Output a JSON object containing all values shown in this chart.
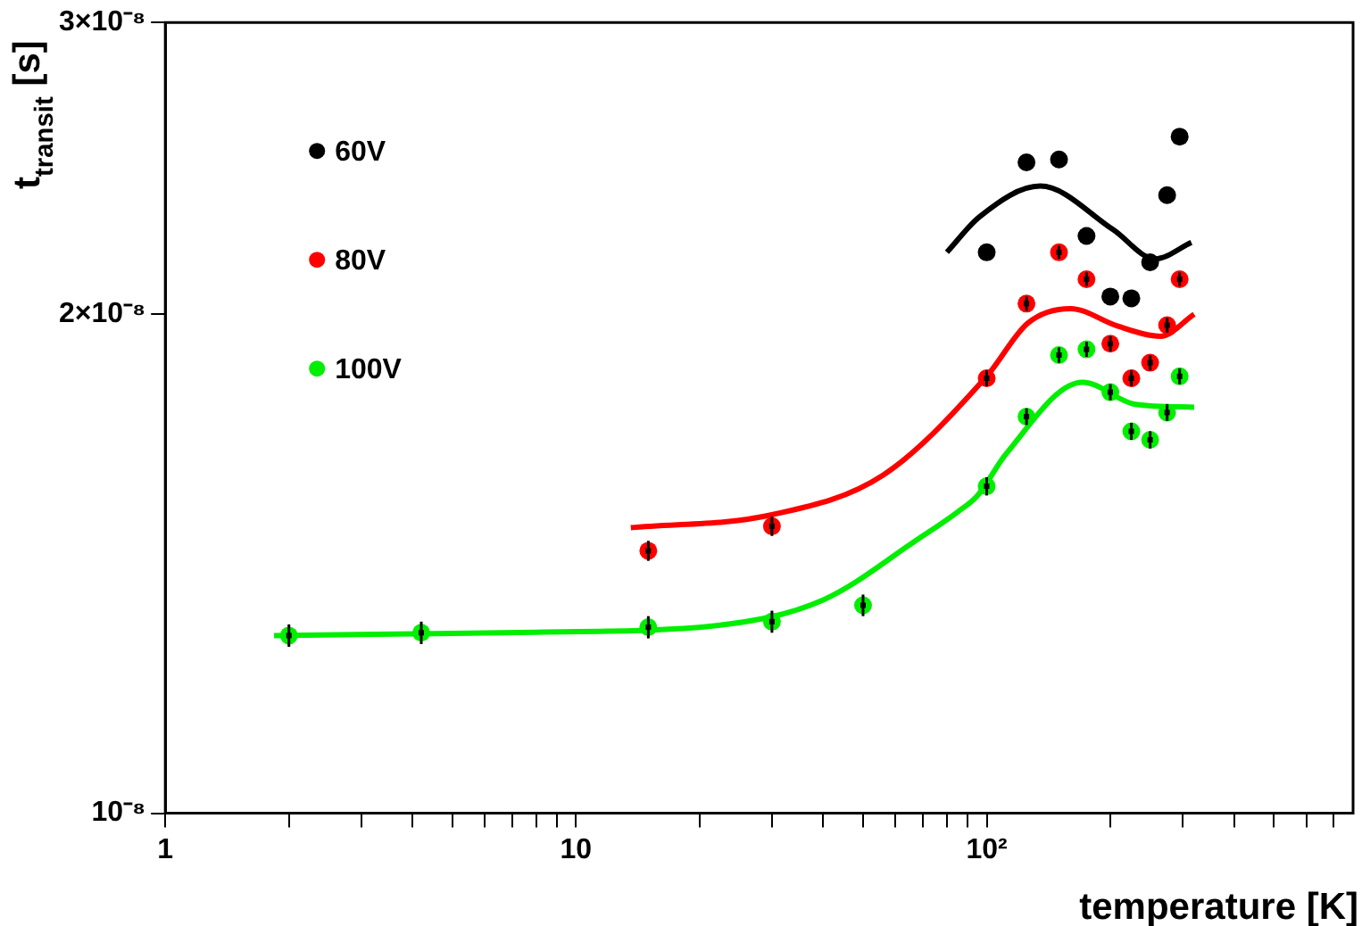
{
  "chart_data": {
    "type": "scatter",
    "xlabel": "temperature [K]",
    "ylabel": "t$_{transit}$ [s]",
    "log": "xy",
    "xlim": [
      1,
      780
    ],
    "ylim": [
      1e-08,
      3e-08
    ],
    "xticks": [
      1,
      {
        "value": 2,
        "label": null
      },
      {
        "value": 3,
        "label": null
      },
      {
        "value": 4,
        "label": null
      },
      {
        "value": 5,
        "label": null
      },
      {
        "value": 6,
        "label": null
      },
      {
        "value": 7,
        "label": null
      },
      {
        "value": 8,
        "label": null
      },
      {
        "value": 9,
        "label": null
      },
      10,
      {
        "value": 20,
        "label": null
      },
      {
        "value": 30,
        "label": null
      },
      {
        "value": 40,
        "label": null
      },
      {
        "value": 50,
        "label": null
      },
      {
        "value": 60,
        "label": null
      },
      {
        "value": 70,
        "label": null
      },
      {
        "value": 80,
        "label": null
      },
      {
        "value": 90,
        "label": null
      },
      {
        "value": 100,
        "label": "10²"
      },
      {
        "value": 200,
        "label": null
      },
      {
        "value": 300,
        "label": null
      },
      {
        "value": 400,
        "label": null
      },
      {
        "value": 500,
        "label": null
      },
      {
        "value": 600,
        "label": null
      },
      {
        "value": 700,
        "label": null
      }
    ],
    "yticks": [
      {
        "value": 1e-08,
        "label": "10⁻⁸"
      },
      {
        "value": 2e-08,
        "label": "2×10⁻⁸"
      },
      {
        "value": 3e-08,
        "label": "3×10⁻⁸"
      }
    ],
    "grid": false,
    "legend": "top left",
    "marker": "circle",
    "series": [
      {
        "name": "60V",
        "color": "#000000",
        "x": [
          100,
          125,
          150,
          175,
          200,
          225,
          250,
          275,
          295
        ],
        "values": [
          2.18e-08,
          2.47e-08,
          2.48e-08,
          2.23e-08,
          2.05e-08,
          2.045e-08,
          2.15e-08,
          2.36e-08,
          2.56e-08
        ]
      },
      {
        "name": "80V",
        "color": "#ff0000",
        "x": [
          15,
          30,
          100,
          125,
          150,
          175,
          200,
          225,
          250,
          275,
          295
        ],
        "values": [
          1.44e-08,
          1.49e-08,
          1.83e-08,
          2.03e-08,
          2.18e-08,
          2.1e-08,
          1.92e-08,
          1.83e-08,
          1.87e-08,
          1.97e-08,
          2.1e-08
        ],
        "errors": [
          2e-10,
          2e-10,
          2e-10,
          2e-10,
          2e-10,
          2e-10,
          2e-10,
          2e-10,
          2e-10,
          2e-10,
          2e-10
        ]
      },
      {
        "name": "100V",
        "color": "#00ee00",
        "x": [
          2,
          4.2,
          15,
          30,
          50,
          100,
          125,
          150,
          175,
          200,
          225,
          250,
          275,
          295
        ],
        "values": [
          1.28e-08,
          1.285e-08,
          1.295e-08,
          1.305e-08,
          1.335e-08,
          1.575e-08,
          1.735e-08,
          1.89e-08,
          1.905e-08,
          1.795e-08,
          1.7e-08,
          1.68e-08,
          1.745e-08,
          1.835e-08
        ],
        "errors": [
          2e-10,
          2e-10,
          2e-10,
          2e-10,
          2e-10,
          2e-10,
          2e-10,
          2e-10,
          2e-10,
          2e-10,
          2e-10,
          2e-10,
          2e-10,
          2e-10
        ]
      },
      {
        "type": "line",
        "marker": "none",
        "color": "#000000",
        "x": [
          80,
          96,
          135,
          203,
          257,
          315
        ],
        "values": [
          2.18e-08,
          2.29e-08,
          2.39e-08,
          2.25e-08,
          2.16e-08,
          2.21e-08
        ]
      },
      {
        "type": "line",
        "marker": "none",
        "color": "#ff0000",
        "x": [
          13.6,
          30,
          56,
          100,
          126,
          160,
          208,
          265,
          320
        ],
        "values": [
          1.487e-08,
          1.514e-08,
          1.6e-08,
          1.835e-08,
          1.976e-08,
          2.016e-08,
          1.968e-08,
          1.94e-08,
          2e-08
        ]
      },
      {
        "type": "line",
        "marker": "none",
        "color": "#00ee00",
        "x": [
          1.84,
          8,
          22,
          40,
          68.7,
          85,
          95,
          112,
          171,
          230,
          320
        ],
        "values": [
          1.28e-08,
          1.286e-08,
          1.298e-08,
          1.345e-08,
          1.466e-08,
          1.52e-08,
          1.555e-08,
          1.65e-08,
          1.82e-08,
          1.765e-08,
          1.758e-08
        ]
      }
    ]
  }
}
